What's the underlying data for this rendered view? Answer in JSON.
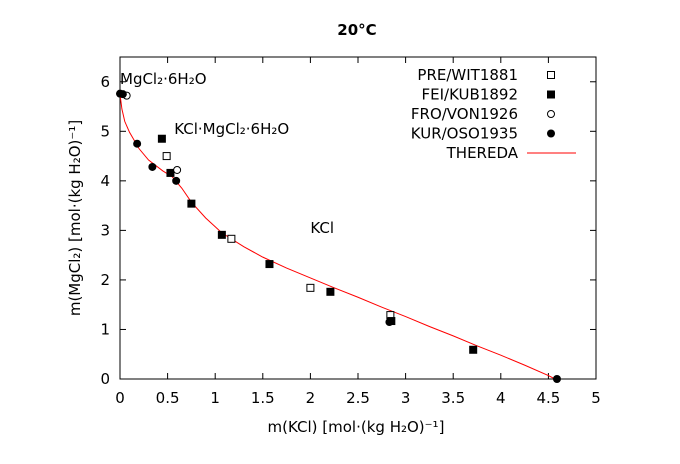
{
  "chart_data": {
    "type": "scatter",
    "title": "20°C",
    "xlabel": "m(KCl) [mol·(kg H₂O)⁻¹]",
    "ylabel": "m(MgCl₂) [mol·(kg H₂O)⁻¹]",
    "xlim": [
      0,
      5
    ],
    "ylim": [
      0,
      6.5
    ],
    "xticks": [
      "0",
      "0.5",
      "1",
      "1.5",
      "2",
      "2.5",
      "3",
      "3.5",
      "4",
      "4.5",
      "5"
    ],
    "yticks": [
      "0",
      "1",
      "2",
      "3",
      "4",
      "5",
      "6"
    ],
    "grid": false,
    "legend_position": "top-right",
    "annotations": [
      {
        "text": "MgCl₂·6H₂O",
        "x": 0.0,
        "y": 5.95
      },
      {
        "text": "KCl·MgCl₂·6H₂O",
        "x": 0.57,
        "y": 4.95
      },
      {
        "text": "KCl",
        "x": 2.0,
        "y": 2.95
      }
    ],
    "series": [
      {
        "name": "PRE/WIT1881",
        "marker": "open-square",
        "color": "#000000",
        "x": [
          0.49,
          1.17,
          2.0,
          2.84
        ],
        "y": [
          4.5,
          2.83,
          1.84,
          1.29
        ]
      },
      {
        "name": "FEI/KUB1892",
        "marker": "filled-square",
        "color": "#000000",
        "x": [
          0.44,
          0.53,
          0.75,
          1.07,
          1.57,
          2.21,
          2.85,
          3.71
        ],
        "y": [
          4.85,
          4.16,
          3.54,
          2.91,
          2.32,
          1.76,
          1.17,
          0.59
        ]
      },
      {
        "name": "FRO/VON1926",
        "marker": "open-circle",
        "color": "#000000",
        "x": [
          0.07,
          0.6
        ],
        "y": [
          5.72,
          4.22
        ]
      },
      {
        "name": "KUR/OSO1935",
        "marker": "filled-circle",
        "color": "#000000",
        "x": [
          0.0,
          0.03,
          0.18,
          0.34,
          0.59,
          2.83,
          4.59
        ],
        "y": [
          5.76,
          5.75,
          4.75,
          4.28,
          4.0,
          1.15,
          0.0
        ]
      },
      {
        "name": "THEREDA",
        "marker": "line",
        "color": "#ff0000",
        "x": [
          0.0,
          0.02,
          0.05,
          0.1,
          0.2,
          0.3,
          0.45,
          0.55,
          0.65,
          0.75,
          0.9,
          1.07,
          1.3,
          1.5,
          1.75,
          2.0,
          2.25,
          2.5,
          2.75,
          3.0,
          3.25,
          3.5,
          3.75,
          4.0,
          4.25,
          4.5,
          4.57
        ],
        "y": [
          5.75,
          5.45,
          5.2,
          4.98,
          4.65,
          4.42,
          4.2,
          4.08,
          3.85,
          3.57,
          3.25,
          2.95,
          2.67,
          2.46,
          2.24,
          2.04,
          1.84,
          1.65,
          1.45,
          1.26,
          1.06,
          0.87,
          0.67,
          0.48,
          0.28,
          0.07,
          0.0
        ]
      }
    ]
  }
}
